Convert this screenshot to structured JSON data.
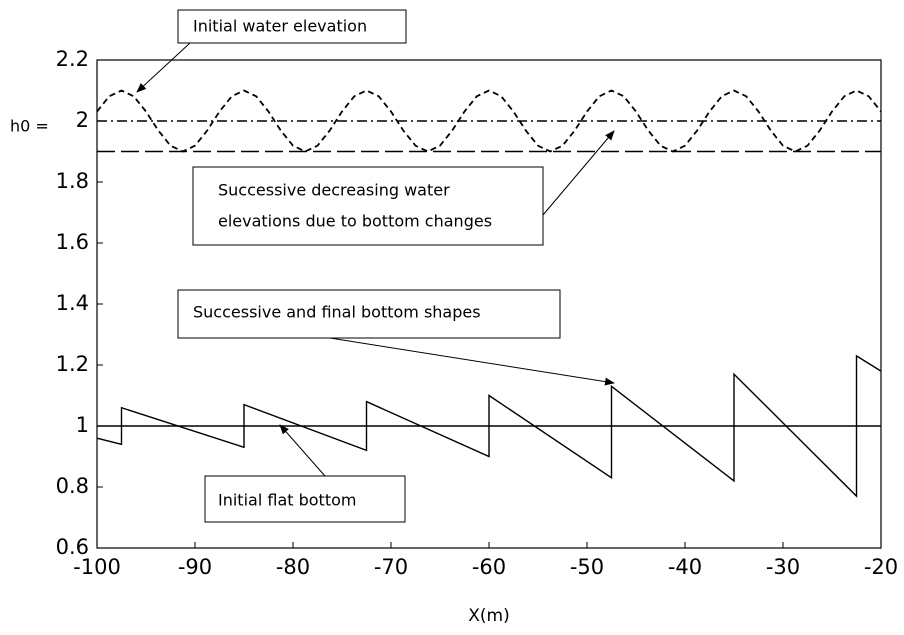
{
  "chart_data": {
    "type": "line",
    "x_label": "X(m)",
    "xlim": [
      -100,
      -20
    ],
    "xticks": [
      -100,
      -90,
      -80,
      -70,
      -60,
      -50,
      -40,
      -30,
      -20
    ],
    "ylim": [
      0.6,
      2.2
    ],
    "yticks": [
      0.6,
      0.8,
      1,
      1.2,
      1.4,
      1.6,
      1.8,
      2,
      2.2
    ],
    "grid": false,
    "series": [
      {
        "color": "#000000",
        "style": "dashed",
        "x": [
          -100,
          -98.75,
          -97.5,
          -96.25,
          -95,
          -93.75,
          -92.5,
          -91.25,
          -90,
          -88.75,
          -87.5,
          -86.25,
          -85,
          -83.75,
          -82.5,
          -81.25,
          -80,
          -78.75,
          -77.5,
          -76.25,
          -75,
          -73.75,
          -72.5,
          -71.25,
          -70,
          -68.75,
          -67.5,
          -66.25,
          -65,
          -63.75,
          -62.5,
          -61.25,
          -60,
          -58.75,
          -57.5,
          -56.25,
          -55,
          -53.75,
          -52.5,
          -51.25,
          -50,
          -48.75,
          -47.5,
          -46.25,
          -45,
          -43.75,
          -42.5,
          -41.25,
          -40,
          -38.75,
          -37.5,
          -36.25,
          -35,
          -33.75,
          -32.5,
          -31.25,
          -30,
          -28.75,
          -27.5,
          -26.25,
          -25,
          -23.75,
          -22.5,
          -21.25,
          -20
        ],
        "values": [
          2.031,
          2.081,
          2.1,
          2.081,
          2.031,
          1.969,
          1.919,
          1.9,
          1.919,
          1.969,
          2.031,
          2.081,
          2.1,
          2.081,
          2.031,
          1.969,
          1.919,
          1.9,
          1.919,
          1.969,
          2.031,
          2.081,
          2.1,
          2.081,
          2.031,
          1.969,
          1.919,
          1.9,
          1.919,
          1.969,
          2.031,
          2.081,
          2.1,
          2.081,
          2.031,
          1.969,
          1.919,
          1.9,
          1.919,
          1.969,
          2.031,
          2.081,
          2.1,
          2.081,
          2.031,
          1.969,
          1.919,
          1.9,
          1.919,
          1.969,
          2.031,
          2.081,
          2.1,
          2.081,
          2.031,
          1.969,
          1.919,
          1.9,
          1.919,
          1.969,
          2.031,
          2.081,
          2.1,
          2.081,
          2.031
        ]
      },
      {
        "color": "#000000",
        "style": "dashdot",
        "x": [
          -100,
          -20
        ],
        "values": [
          2,
          2
        ]
      },
      {
        "color": "#000000",
        "style": "longdash",
        "x": [
          -100,
          -20
        ],
        "values": [
          1.9,
          1.9
        ]
      },
      {
        "color": "#000000",
        "style": "solid",
        "x": [
          -100,
          -20
        ],
        "values": [
          1,
          1
        ]
      },
      {
        "color": "#000000",
        "style": "solid",
        "x": [
          -100,
          -97.5,
          -97.5,
          -85,
          -85,
          -72.5,
          -72.5,
          -60,
          -60,
          -47.5,
          -47.5,
          -35,
          -35,
          -22.5,
          -22.5,
          -20
        ],
        "values": [
          0.96,
          0.94,
          1.06,
          0.93,
          1.07,
          0.92,
          1.08,
          0.9,
          1.1,
          0.83,
          1.13,
          0.82,
          1.17,
          0.77,
          1.23,
          1.18
        ]
      }
    ],
    "annotations": {
      "initial_water": "Initial water elevation",
      "successive_water": [
        "Successive decreasing water",
        "elevations due to bottom changes"
      ],
      "bottom_shapes": "Successive and final bottom shapes",
      "flat_bottom": "Initial flat bottom",
      "h0": "h0 ="
    }
  }
}
